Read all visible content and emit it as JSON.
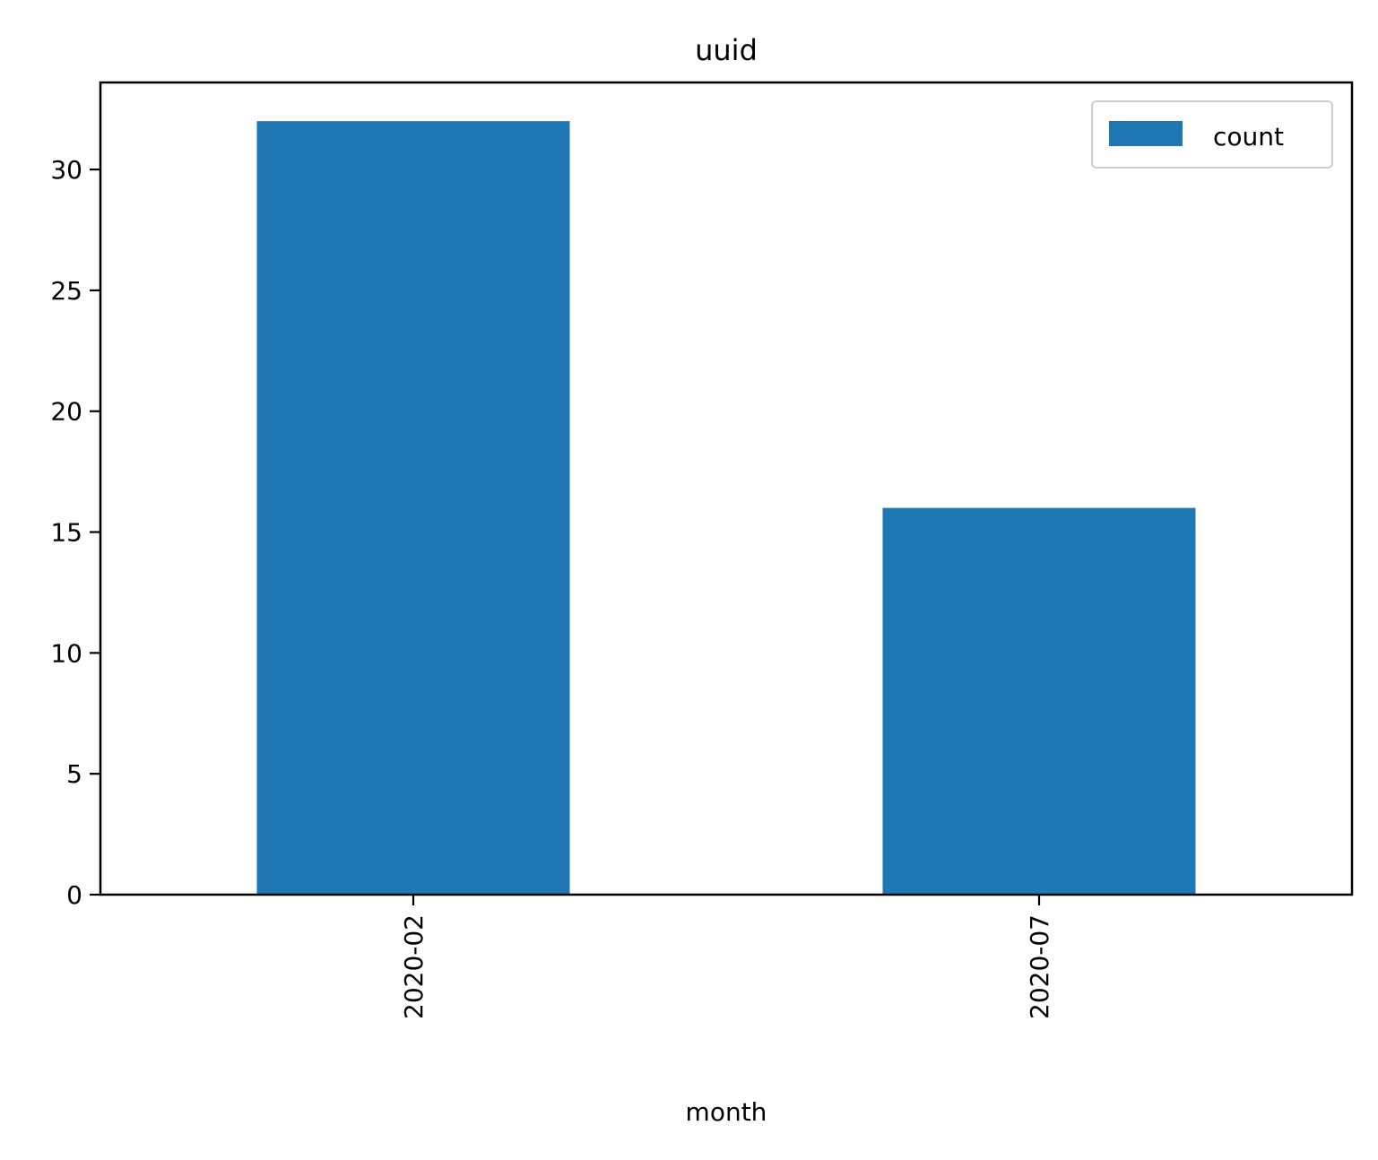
{
  "chart_data": {
    "type": "bar",
    "title": "uuid",
    "xlabel": "month",
    "ylabel": "",
    "categories": [
      "2020-02",
      "2020-07"
    ],
    "series": [
      {
        "name": "count",
        "values": [
          32,
          16
        ],
        "color": "#1f77b4"
      }
    ],
    "ylim": [
      0,
      33.6
    ],
    "yticks": [
      0,
      5,
      10,
      15,
      20,
      25,
      30
    ],
    "grid": false,
    "legend": {
      "position": "top-right"
    },
    "xtick_rotation": "vertical"
  }
}
